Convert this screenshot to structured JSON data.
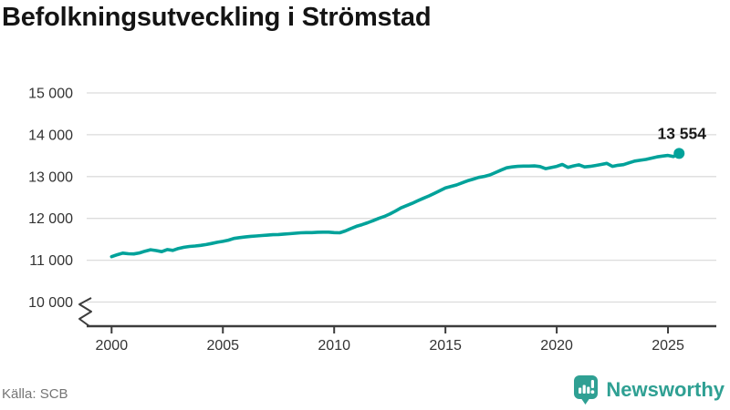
{
  "title": "Befolkningsutveckling i Strömstad",
  "source": "Källa: SCB",
  "brand": {
    "name": "Newsworthy",
    "icon": "bar-chart-speech-bubble-icon",
    "color": "#2fa093"
  },
  "colors": {
    "background": "#ffffff",
    "line": "#00a29a",
    "grid": "#dcdcdc",
    "axis": "#3c3c3c",
    "tick_text": "#333333",
    "title_text": "#141414",
    "end_label_text": "#1a1a1a",
    "source_text": "#757575"
  },
  "chart_data": {
    "type": "line",
    "title": "Befolkningsutveckling i Strömstad",
    "xlabel": "",
    "ylabel": "",
    "grid": "horizontal",
    "axis_break_at_bottom": true,
    "ylim": [
      10000,
      15000
    ],
    "xlim": [
      1998.9,
      2027.2
    ],
    "x_ticks": [
      2000,
      2005,
      2010,
      2015,
      2020,
      2025
    ],
    "x_tick_labels": [
      "2000",
      "2005",
      "2010",
      "2015",
      "2020",
      "2025"
    ],
    "y_ticks": [
      10000,
      11000,
      12000,
      13000,
      14000,
      15000
    ],
    "y_tick_labels": [
      "10 000",
      "11 000",
      "12 000",
      "13 000",
      "14 000",
      "15 000"
    ],
    "last_point": {
      "x": 2025.5,
      "value": 13554,
      "label": "13 554"
    },
    "x": [
      2000.0,
      2000.25,
      2000.5,
      2000.75,
      2001.0,
      2001.25,
      2001.5,
      2001.75,
      2002.0,
      2002.25,
      2002.5,
      2002.75,
      2003.0,
      2003.25,
      2003.5,
      2003.75,
      2004.0,
      2004.25,
      2004.5,
      2004.75,
      2005.0,
      2005.25,
      2005.5,
      2005.75,
      2006.0,
      2006.25,
      2006.5,
      2006.75,
      2007.0,
      2007.25,
      2007.5,
      2007.75,
      2008.0,
      2008.25,
      2008.5,
      2008.75,
      2009.0,
      2009.25,
      2009.5,
      2009.75,
      2010.0,
      2010.25,
      2010.5,
      2010.75,
      2011.0,
      2011.25,
      2011.5,
      2011.75,
      2012.0,
      2012.25,
      2012.5,
      2012.75,
      2013.0,
      2013.25,
      2013.5,
      2013.75,
      2014.0,
      2014.25,
      2014.5,
      2014.75,
      2015.0,
      2015.25,
      2015.5,
      2015.75,
      2016.0,
      2016.25,
      2016.5,
      2016.75,
      2017.0,
      2017.25,
      2017.5,
      2017.75,
      2018.0,
      2018.25,
      2018.5,
      2018.75,
      2019.0,
      2019.25,
      2019.5,
      2019.75,
      2020.0,
      2020.25,
      2020.5,
      2020.75,
      2021.0,
      2021.25,
      2021.5,
      2021.75,
      2022.0,
      2022.25,
      2022.5,
      2022.75,
      2023.0,
      2023.25,
      2023.5,
      2023.75,
      2024.0,
      2024.25,
      2024.5,
      2024.75,
      2025.0,
      2025.25,
      2025.5
    ],
    "values": [
      11085,
      11130,
      11170,
      11155,
      11150,
      11175,
      11215,
      11250,
      11230,
      11205,
      11255,
      11235,
      11280,
      11310,
      11330,
      11340,
      11355,
      11375,
      11400,
      11430,
      11450,
      11480,
      11520,
      11540,
      11555,
      11570,
      11580,
      11590,
      11600,
      11610,
      11615,
      11625,
      11635,
      11645,
      11655,
      11660,
      11660,
      11668,
      11672,
      11670,
      11660,
      11655,
      11700,
      11755,
      11810,
      11850,
      11895,
      11945,
      12000,
      12045,
      12105,
      12175,
      12250,
      12305,
      12360,
      12420,
      12480,
      12535,
      12600,
      12665,
      12730,
      12765,
      12800,
      12850,
      12900,
      12940,
      12980,
      13005,
      13040,
      13095,
      13155,
      13210,
      13230,
      13245,
      13250,
      13250,
      13255,
      13240,
      13190,
      13215,
      13245,
      13290,
      13220,
      13255,
      13280,
      13230,
      13245,
      13265,
      13290,
      13315,
      13245,
      13270,
      13285,
      13330,
      13370,
      13390,
      13410,
      13440,
      13470,
      13490,
      13505,
      13480,
      13554
    ]
  }
}
